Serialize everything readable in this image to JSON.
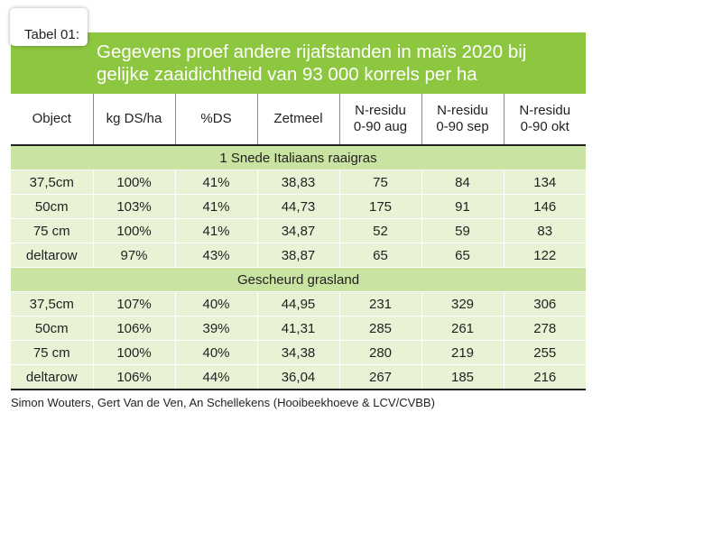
{
  "tag_label": "Tabel 01:",
  "title_line1": "Gegevens proef andere rijafstanden in maïs 2020 bij",
  "title_line2": "gelijke  zaaidichtheid van 93 000 korrels per ha",
  "columns": [
    {
      "line1": "Object",
      "line2": ""
    },
    {
      "line1": "kg DS/ha",
      "line2": ""
    },
    {
      "line1": "%DS",
      "line2": ""
    },
    {
      "line1": "Zetmeel",
      "line2": ""
    },
    {
      "line1": "N-residu",
      "line2": "0-90 aug"
    },
    {
      "line1": "N-residu",
      "line2": "0-90 sep"
    },
    {
      "line1": "N-residu",
      "line2": "0-90 okt"
    }
  ],
  "sections": [
    {
      "title": "1 Snede Italiaans raaigras",
      "rows": [
        [
          "37,5cm",
          "100%",
          "41%",
          "38,83",
          "75",
          "84",
          "134"
        ],
        [
          "50cm",
          "103%",
          "41%",
          "44,73",
          "175",
          "91",
          "146"
        ],
        [
          "75 cm",
          "100%",
          "41%",
          "34,87",
          "52",
          "59",
          "83"
        ],
        [
          "deltarow",
          "97%",
          "43%",
          "38,87",
          "65",
          "65",
          "122"
        ]
      ]
    },
    {
      "title": "Gescheurd grasland",
      "rows": [
        [
          "37,5cm",
          "107%",
          "40%",
          "44,95",
          "231",
          "329",
          "306"
        ],
        [
          "50cm",
          "106%",
          "39%",
          "41,31",
          "285",
          "261",
          "278"
        ],
        [
          "75 cm",
          "100%",
          "40%",
          "34,38",
          "280",
          "219",
          "255"
        ],
        [
          "deltarow",
          "106%",
          "44%",
          "36,04",
          "267",
          "185",
          "216"
        ]
      ]
    }
  ],
  "source": "Simon Wouters, Gert Van de Ven, An Schellekens  (Hooibeekhoeve & LCV/CVBB)",
  "colors": {
    "header_green": "#8dc63f",
    "section_green": "#c9e3a2",
    "row_green": "#e8f3d6"
  }
}
